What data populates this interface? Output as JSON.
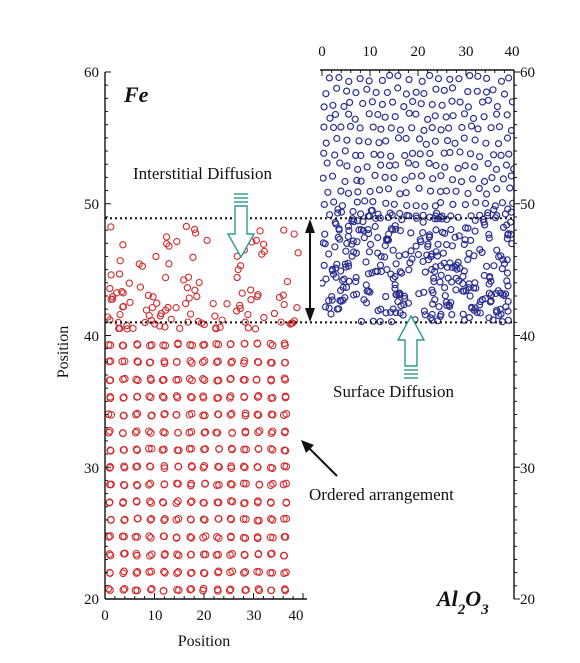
{
  "chart_data": {
    "type": "scatter",
    "panels": [
      {
        "name": "Fe",
        "label": "Fe",
        "color": "#d42a2a",
        "x_axis": {
          "label": "Position",
          "ticks": [
            "0",
            "10",
            "20",
            "30",
            "40"
          ],
          "range": [
            0,
            40
          ],
          "side": "bottom"
        },
        "y_axis": {
          "label": "Position",
          "ticks": [
            "20",
            "30",
            "40",
            "50",
            "60"
          ],
          "range": [
            20,
            60
          ],
          "side": "left"
        },
        "lattice": {
          "x_min": 1,
          "x_max": 39,
          "x_step": 2.72,
          "y_min": 20.7,
          "y_max": 40.1,
          "y_step": 1.33
        },
        "diffused_atoms_y_range": [
          40.5,
          48.5
        ]
      },
      {
        "name": "Al2O3",
        "label_main": "Al",
        "label_sub1": "2",
        "label_mid": "O",
        "label_sub2": "3",
        "color": "#2b2f8f",
        "x_axis": {
          "ticks": [
            "0",
            "10",
            "20",
            "30",
            "40"
          ],
          "range": [
            0,
            40
          ],
          "side": "top"
        },
        "y_axis": {
          "ticks": [
            "20",
            "30",
            "40",
            "50",
            "60"
          ],
          "range": [
            20,
            60
          ],
          "side": "right"
        },
        "y_extent": [
          41,
          59.5
        ]
      }
    ],
    "reference_lines": [
      {
        "y": 48.9,
        "style": "dotted"
      },
      {
        "y": 41.0,
        "style": "dotted"
      }
    ],
    "annotations": {
      "interstitial": "Interstitial Diffusion",
      "surface": "Surface Diffusion",
      "ordered": "Ordered arrangement"
    },
    "colors": {
      "fe_atoms": "#d42a2a",
      "al2o3_atoms": "#2b2f8f",
      "diffusion_arrow": "#2a9a8a",
      "axis": "#111111"
    },
    "grid": false
  }
}
